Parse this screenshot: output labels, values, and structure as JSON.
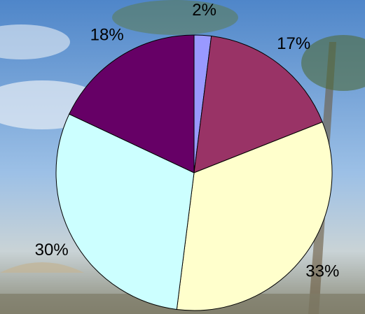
{
  "chart_data": {
    "type": "pie",
    "values": [
      2,
      17,
      33,
      30,
      18
    ],
    "value_labels": [
      "2%",
      "17%",
      "33%",
      "30%",
      "18%"
    ],
    "colors": [
      "#9999ff",
      "#993366",
      "#ffffcc",
      "#ccffff",
      "#660066"
    ]
  }
}
